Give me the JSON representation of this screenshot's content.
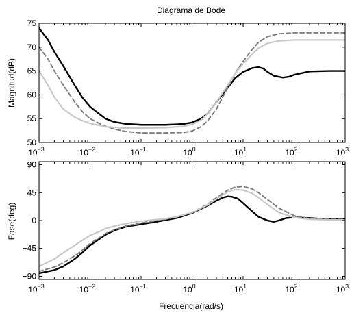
{
  "chart_data": [
    {
      "type": "line",
      "title": "Diagrama de Bode",
      "xlabel": "",
      "ylabel": "Magnitud(dB)",
      "xscale": "log",
      "xlim": [
        0.001,
        1000
      ],
      "ylim": [
        50,
        75
      ],
      "xticks": [
        0.001,
        0.01,
        0.1,
        1,
        10,
        100,
        1000
      ],
      "yticks": [
        50,
        55,
        60,
        65,
        70,
        75
      ],
      "grid": false,
      "series": [
        {
          "color": "#000000",
          "dash": "solid",
          "width": 2.4,
          "points": [
            [
              0.001,
              74
            ],
            [
              0.0015,
              71.5
            ],
            [
              0.002,
              69
            ],
            [
              0.003,
              66
            ],
            [
              0.005,
              62
            ],
            [
              0.007,
              59.5
            ],
            [
              0.01,
              57.5
            ],
            [
              0.015,
              56
            ],
            [
              0.02,
              55
            ],
            [
              0.03,
              54.3
            ],
            [
              0.05,
              53.9
            ],
            [
              0.1,
              53.7
            ],
            [
              0.3,
              53.7
            ],
            [
              0.5,
              53.8
            ],
            [
              0.7,
              53.9
            ],
            [
              1,
              54.2
            ],
            [
              1.5,
              55
            ],
            [
              2,
              56
            ],
            [
              3,
              58.5
            ],
            [
              5,
              61.5
            ],
            [
              7,
              63.5
            ],
            [
              10,
              64.8
            ],
            [
              15,
              65.6
            ],
            [
              20,
              65.8
            ],
            [
              25,
              65.5
            ],
            [
              30,
              64.8
            ],
            [
              40,
              64
            ],
            [
              60,
              63.6
            ],
            [
              80,
              63.8
            ],
            [
              100,
              64.2
            ],
            [
              200,
              64.9
            ],
            [
              500,
              65
            ],
            [
              1000,
              65
            ]
          ]
        },
        {
          "color": "#7f7f7f",
          "dash": "dashed",
          "width": 2.0,
          "points": [
            [
              0.001,
              70
            ],
            [
              0.0015,
              67.5
            ],
            [
              0.002,
              65
            ],
            [
              0.003,
              62
            ],
            [
              0.005,
              58.5
            ],
            [
              0.007,
              56.5
            ],
            [
              0.01,
              55
            ],
            [
              0.015,
              54
            ],
            [
              0.02,
              53.4
            ],
            [
              0.03,
              52.8
            ],
            [
              0.05,
              52.3
            ],
            [
              0.1,
              52
            ],
            [
              0.3,
              52
            ],
            [
              0.7,
              52.1
            ],
            [
              1,
              52.4
            ],
            [
              1.5,
              53.3
            ],
            [
              2,
              54.5
            ],
            [
              3,
              57
            ],
            [
              5,
              61.5
            ],
            [
              7,
              64.5
            ],
            [
              10,
              67
            ],
            [
              15,
              69.5
            ],
            [
              20,
              71
            ],
            [
              30,
              72.2
            ],
            [
              50,
              72.8
            ],
            [
              100,
              73
            ],
            [
              1000,
              73
            ]
          ]
        },
        {
          "color": "#c8c8c8",
          "dash": "solid",
          "width": 2.2,
          "points": [
            [
              0.001,
              65
            ],
            [
              0.0015,
              62
            ],
            [
              0.002,
              59.5
            ],
            [
              0.003,
              57
            ],
            [
              0.005,
              55.3
            ],
            [
              0.007,
              54.6
            ],
            [
              0.01,
              54
            ],
            [
              0.02,
              53.3
            ],
            [
              0.05,
              53
            ],
            [
              0.1,
              53
            ],
            [
              0.3,
              53.1
            ],
            [
              0.7,
              53.4
            ],
            [
              1,
              53.8
            ],
            [
              1.5,
              54.7
            ],
            [
              2,
              56
            ],
            [
              3,
              58.5
            ],
            [
              5,
              62
            ],
            [
              7,
              64.5
            ],
            [
              10,
              66.5
            ],
            [
              15,
              68.5
            ],
            [
              20,
              69.8
            ],
            [
              30,
              70.8
            ],
            [
              50,
              71.3
            ],
            [
              100,
              71.5
            ],
            [
              1000,
              71.5
            ]
          ]
        }
      ]
    },
    {
      "type": "line",
      "title": "",
      "xlabel": "Frecuencia(rad/s)",
      "ylabel": "Fase(deg)",
      "xscale": "log",
      "xlim": [
        0.001,
        1000
      ],
      "ylim": [
        -95,
        95
      ],
      "xticks": [
        0.001,
        0.01,
        0.1,
        1,
        10,
        100,
        1000
      ],
      "yticks": [
        -90,
        -45,
        0,
        45,
        90
      ],
      "grid": false,
      "series": [
        {
          "color": "#000000",
          "dash": "solid",
          "width": 2.4,
          "points": [
            [
              0.001,
              -85
            ],
            [
              0.002,
              -80
            ],
            [
              0.003,
              -74
            ],
            [
              0.005,
              -62
            ],
            [
              0.007,
              -52
            ],
            [
              0.01,
              -40
            ],
            [
              0.015,
              -30
            ],
            [
              0.02,
              -23
            ],
            [
              0.03,
              -16
            ],
            [
              0.05,
              -10
            ],
            [
              0.1,
              -6
            ],
            [
              0.2,
              -2
            ],
            [
              0.5,
              4
            ],
            [
              1,
              12
            ],
            [
              2,
              24
            ],
            [
              3,
              32
            ],
            [
              4,
              37
            ],
            [
              5,
              39
            ],
            [
              6,
              38.5
            ],
            [
              8,
              35
            ],
            [
              10,
              28
            ],
            [
              15,
              15
            ],
            [
              20,
              6
            ],
            [
              30,
              0
            ],
            [
              40,
              -2
            ],
            [
              50,
              0
            ],
            [
              70,
              4
            ],
            [
              100,
              5
            ],
            [
              200,
              4
            ],
            [
              500,
              2
            ],
            [
              1000,
              2
            ]
          ]
        },
        {
          "color": "#7f7f7f",
          "dash": "dashed",
          "width": 2.0,
          "points": [
            [
              0.001,
              -82
            ],
            [
              0.002,
              -75
            ],
            [
              0.003,
              -68
            ],
            [
              0.005,
              -57
            ],
            [
              0.007,
              -48
            ],
            [
              0.01,
              -37
            ],
            [
              0.015,
              -28
            ],
            [
              0.02,
              -21
            ],
            [
              0.03,
              -15
            ],
            [
              0.05,
              -9
            ],
            [
              0.1,
              -4
            ],
            [
              0.3,
              2
            ],
            [
              0.5,
              6
            ],
            [
              1,
              13
            ],
            [
              2,
              26
            ],
            [
              3,
              37
            ],
            [
              5,
              49
            ],
            [
              7,
              54
            ],
            [
              10,
              55
            ],
            [
              15,
              51
            ],
            [
              20,
              45
            ],
            [
              30,
              34
            ],
            [
              50,
              20
            ],
            [
              100,
              8
            ],
            [
              200,
              3
            ],
            [
              500,
              2
            ],
            [
              1000,
              2
            ]
          ]
        },
        {
          "color": "#c8c8c8",
          "dash": "solid",
          "width": 2.2,
          "points": [
            [
              0.001,
              -74
            ],
            [
              0.002,
              -62
            ],
            [
              0.003,
              -52
            ],
            [
              0.005,
              -40
            ],
            [
              0.007,
              -32
            ],
            [
              0.01,
              -24
            ],
            [
              0.015,
              -18
            ],
            [
              0.02,
              -13
            ],
            [
              0.03,
              -9
            ],
            [
              0.05,
              -5
            ],
            [
              0.1,
              -1
            ],
            [
              0.3,
              3
            ],
            [
              0.5,
              6
            ],
            [
              1,
              13
            ],
            [
              2,
              25
            ],
            [
              3,
              35
            ],
            [
              5,
              46
            ],
            [
              7,
              50
            ],
            [
              10,
              49
            ],
            [
              15,
              44
            ],
            [
              20,
              37
            ],
            [
              30,
              26
            ],
            [
              50,
              13
            ],
            [
              100,
              5
            ],
            [
              200,
              2
            ],
            [
              500,
              1
            ],
            [
              1000,
              1
            ]
          ]
        }
      ]
    }
  ]
}
